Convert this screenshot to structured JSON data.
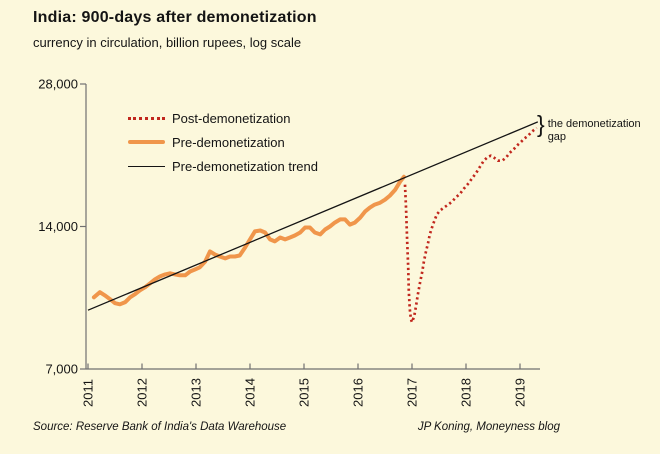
{
  "title": "India: 900-days after demonetization",
  "subtitle": "currency in circulation, billion rupees, log scale",
  "source": "Source: Reserve Bank of India's Data Warehouse",
  "credit": "JP Koning, Moneyness blog",
  "annotation": {
    "brace": "}",
    "line1": "the demonetization",
    "line2": "gap"
  },
  "colors": {
    "background": "#FCF8DC",
    "text": "#141414",
    "axis": "#707070",
    "post": "#C1271D",
    "pre": "#F0964B",
    "trend": "#141414"
  },
  "legend": [
    {
      "id": "post",
      "label": "Post-demonetization",
      "color": "#C1271D",
      "style": "dotted"
    },
    {
      "id": "pre",
      "label": "Pre-demonetization",
      "color": "#F0964B",
      "style": "thick"
    },
    {
      "id": "trend",
      "label": "Pre-demonetization trend",
      "color": "#141414",
      "style": "thin"
    }
  ],
  "chart_data": {
    "type": "line",
    "y_scale": "log",
    "title": "India: 900-days after demonetization",
    "ylabel": "currency in circulation, billion rupees",
    "ylim": [
      7000,
      28000
    ],
    "xlim": [
      2010.96,
      2019.4
    ],
    "x_ticks": [
      2011,
      2012,
      2013,
      2014,
      2015,
      2016,
      2017,
      2018,
      2019
    ],
    "y_ticks": [
      7000,
      14000,
      28000
    ],
    "y_tick_labels": [
      "7,000",
      "14,000",
      "28,000"
    ],
    "legend_position": "upper-left-inside",
    "grid": false,
    "series": [
      {
        "id": "pre",
        "name": "Pre-demonetization",
        "color": "#F0964B",
        "width": 4,
        "x": [
          2011.11,
          2011.22,
          2011.31,
          2011.41,
          2011.5,
          2011.59,
          2011.69,
          2011.78,
          2011.87,
          2011.96,
          2012.06,
          2012.15,
          2012.24,
          2012.33,
          2012.43,
          2012.52,
          2012.61,
          2012.7,
          2012.8,
          2012.89,
          2012.98,
          2013.07,
          2013.17,
          2013.26,
          2013.35,
          2013.44,
          2013.54,
          2013.63,
          2013.72,
          2013.81,
          2013.91,
          2014.0,
          2014.09,
          2014.19,
          2014.28,
          2014.37,
          2014.46,
          2014.56,
          2014.65,
          2014.74,
          2014.83,
          2014.93,
          2015.02,
          2015.11,
          2015.2,
          2015.3,
          2015.39,
          2015.48,
          2015.57,
          2015.67,
          2015.76,
          2015.85,
          2015.94,
          2016.04,
          2016.13,
          2016.22,
          2016.31,
          2016.41,
          2016.5,
          2016.59,
          2016.69,
          2016.78,
          2016.85
        ],
        "y": [
          9920,
          10170,
          10020,
          9830,
          9640,
          9590,
          9690,
          9920,
          10070,
          10260,
          10420,
          10620,
          10830,
          10980,
          11090,
          11150,
          11090,
          11040,
          11040,
          11250,
          11360,
          11480,
          11810,
          12400,
          12220,
          12100,
          11990,
          12100,
          12100,
          12160,
          12640,
          13150,
          13670,
          13730,
          13600,
          13150,
          13020,
          13270,
          13150,
          13270,
          13400,
          13600,
          13930,
          13930,
          13600,
          13470,
          13800,
          14000,
          14270,
          14490,
          14490,
          14130,
          14270,
          14620,
          15050,
          15350,
          15570,
          15720,
          15950,
          16270,
          16750,
          17410,
          17830
        ]
      },
      {
        "id": "trend",
        "name": "Pre-demonetization trend",
        "color": "#141414",
        "width": 1.3,
        "x": [
          2011.0,
          2019.33
        ],
        "y": [
          9320,
          23290
        ]
      },
      {
        "id": "post",
        "name": "Post-demonetization",
        "color": "#C1271D",
        "width": 2.7,
        "dash": "2.2 3",
        "x": [
          2016.87,
          2016.89,
          2016.91,
          2016.93,
          2016.94,
          2016.96,
          2016.98,
          2017.0,
          2017.04,
          2017.07,
          2017.11,
          2017.15,
          2017.19,
          2017.22,
          2017.26,
          2017.3,
          2017.33,
          2017.37,
          2017.41,
          2017.46,
          2017.52,
          2017.59,
          2017.67,
          2017.74,
          2017.81,
          2017.89,
          2017.96,
          2018.04,
          2018.11,
          2018.19,
          2018.26,
          2018.33,
          2018.41,
          2018.46,
          2018.52,
          2018.59,
          2018.67,
          2018.74,
          2018.81,
          2018.89,
          2018.96,
          2019.02,
          2019.07,
          2019.15,
          2019.2,
          2019.26,
          2019.31
        ],
        "y": [
          17160,
          15190,
          13150,
          11480,
          10220,
          9370,
          8920,
          8790,
          9050,
          9450,
          10070,
          10670,
          11250,
          11810,
          12400,
          12960,
          13470,
          13930,
          14340,
          14840,
          15130,
          15350,
          15570,
          15800,
          16110,
          16430,
          16830,
          17240,
          17670,
          18190,
          18730,
          19280,
          19660,
          19760,
          19560,
          19280,
          19280,
          19560,
          20040,
          20430,
          20830,
          21130,
          21440,
          21760,
          22080,
          22400,
          22620
        ]
      }
    ]
  }
}
